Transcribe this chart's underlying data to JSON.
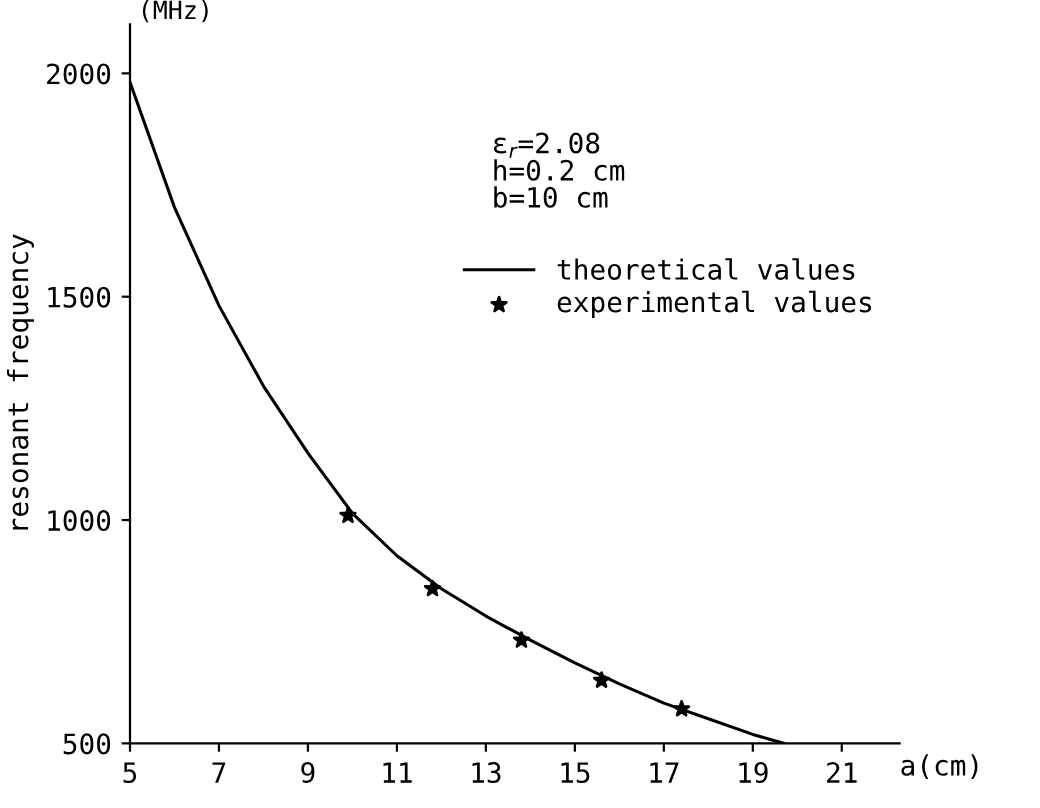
{
  "chart_data": {
    "type": "line",
    "xlabel": "a(cm)",
    "ylabel": "resonant frequency",
    "annotations": [
      "(MHz)",
      "ε$_{r}$=2.08",
      "h=0.2 cm",
      "b=10 cm"
    ],
    "series": [
      {
        "name": "theoretical values",
        "type": "line",
        "color": "#000000",
        "marker": "none",
        "x": [
          5,
          6,
          7,
          8,
          9,
          10,
          11,
          12,
          13,
          14,
          15,
          16,
          17,
          18,
          19,
          19.7
        ],
        "values": [
          1980,
          1700,
          1480,
          1300,
          1150,
          1015,
          920,
          846,
          785,
          731,
          680,
          633,
          590,
          555,
          520,
          500
        ]
      },
      {
        "name": "experimental values",
        "type": "scatter",
        "color": "#000000",
        "marker": "star",
        "x": [
          9.9,
          11.8,
          13.8,
          15.6,
          17.4
        ],
        "values": [
          1010,
          846,
          731,
          641,
          577
        ]
      }
    ],
    "xlim": [
      5,
      22.3
    ],
    "ylim": [
      500,
      2110
    ],
    "xticks": [
      5,
      7,
      9,
      11,
      13,
      15,
      17,
      19,
      21
    ],
    "yticks": [
      500,
      1000,
      1500,
      2000
    ],
    "grid": false,
    "legend": "top right"
  }
}
